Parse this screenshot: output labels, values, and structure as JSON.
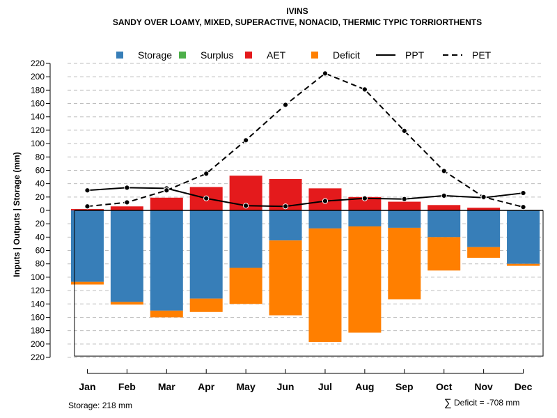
{
  "title": "IVINS",
  "subtitle": "SANDY OVER LOAMY, MIXED, SUPERACTIVE, NONACID, THERMIC TYPIC TORRIORTHENTS",
  "footer": {
    "storage": "Storage: 218 mm",
    "deficit_symbol": "∑",
    "deficit": "Deficit = -708 mm"
  },
  "legend": [
    {
      "label": "Storage",
      "kind": "box",
      "color": "#377eb8"
    },
    {
      "label": "Surplus",
      "kind": "box",
      "color": "#4daf4a"
    },
    {
      "label": "AET",
      "kind": "box",
      "color": "#e41a1c"
    },
    {
      "label": "Deficit",
      "kind": "box",
      "color": "#ff7f00"
    },
    {
      "label": "PPT",
      "kind": "solid",
      "color": "#000000"
    },
    {
      "label": "PET",
      "kind": "dashed",
      "color": "#000000"
    }
  ],
  "chart_data": {
    "type": "bar",
    "title": "IVINS",
    "ylabel": "Inputs | Outputs | Storage    (mm)",
    "ylim": [
      -220,
      220
    ],
    "yticks": [
      220,
      200,
      180,
      160,
      140,
      120,
      100,
      80,
      60,
      40,
      20,
      0,
      20,
      40,
      60,
      80,
      100,
      120,
      140,
      160,
      180,
      200,
      220
    ],
    "grid": true,
    "legend_position": "top",
    "categories": [
      "Jan",
      "Feb",
      "Mar",
      "Apr",
      "May",
      "Jun",
      "Jul",
      "Aug",
      "Sep",
      "Oct",
      "Nov",
      "Dec"
    ],
    "series": [
      {
        "name": "AET",
        "color": "#e41a1c",
        "values": [
          2,
          6,
          19,
          35,
          52,
          47,
          33,
          20,
          13,
          8,
          4,
          0
        ]
      },
      {
        "name": "Storage",
        "color": "#377eb8",
        "values": [
          -107,
          -137,
          -150,
          -132,
          -86,
          -45,
          -27,
          -24,
          -26,
          -40,
          -55,
          -80
        ]
      },
      {
        "name": "Deficit",
        "color": "#ff7f00",
        "values": [
          -4,
          -4,
          -10,
          -20,
          -54,
          -112,
          -170,
          -159,
          -107,
          -50,
          -16,
          -3
        ]
      },
      {
        "name": "Surplus",
        "color": "#4daf4a",
        "values": [
          0,
          0,
          0,
          0,
          0,
          0,
          0,
          0,
          0,
          0,
          0,
          0
        ]
      },
      {
        "name": "PPT",
        "color": "#000000",
        "line": "solid",
        "values": [
          30,
          34,
          33,
          18,
          7,
          6,
          14,
          18,
          17,
          22,
          19,
          26
        ]
      },
      {
        "name": "PET",
        "color": "#000000",
        "line": "dashed",
        "values": [
          6,
          12,
          30,
          55,
          105,
          158,
          205,
          181,
          119,
          59,
          20,
          5
        ]
      }
    ],
    "storage_capacity": 218
  }
}
